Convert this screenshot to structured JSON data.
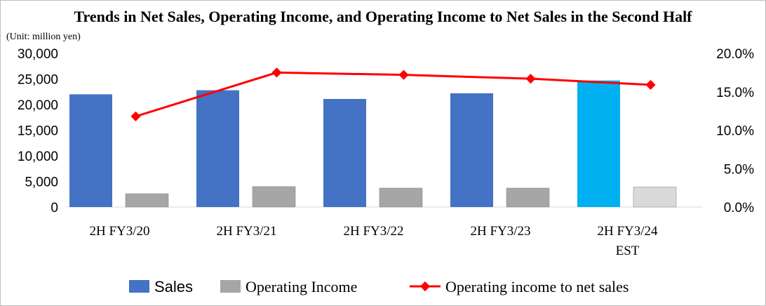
{
  "chart_data": {
    "type": "bar",
    "title": "Trends in Net Sales, Operating Income, and Operating Income to Net Sales in the Second Half",
    "unit_label": "(Unit: million yen)",
    "categories": [
      [
        "2H FY3/20"
      ],
      [
        "2H FY3/21"
      ],
      [
        "2H FY3/22"
      ],
      [
        "2H FY3/23"
      ],
      [
        "2H FY3/24",
        "EST"
      ]
    ],
    "y_left": {
      "range": [
        0,
        30000
      ],
      "ticks": [
        "0",
        "5,000",
        "10,000",
        "15,000",
        "20,000",
        "25,000",
        "30,000"
      ]
    },
    "y_right": {
      "range": [
        0,
        20
      ],
      "ticks": [
        "0.0%",
        "5.0%",
        "10.0%",
        "15.0%",
        "20.0%"
      ]
    },
    "grid": false,
    "legend_position": "bottom",
    "series": [
      {
        "name": "Sales",
        "kind": "bar",
        "axis": "left",
        "color": "#4472C4",
        "highlight_color": "#00B0F0",
        "values": [
          22000,
          22800,
          21100,
          22200,
          24700
        ]
      },
      {
        "name": "Operating Income",
        "kind": "bar",
        "axis": "left",
        "color": "#A6A6A6",
        "highlight_color": "#D9D9D9",
        "values": [
          2600,
          4000,
          3700,
          3700,
          3900
        ]
      },
      {
        "name": "Operating income to net sales",
        "kind": "line",
        "axis": "right",
        "color": "#FF0000",
        "values": [
          11.8,
          17.5,
          17.2,
          16.7,
          15.9
        ]
      }
    ]
  }
}
